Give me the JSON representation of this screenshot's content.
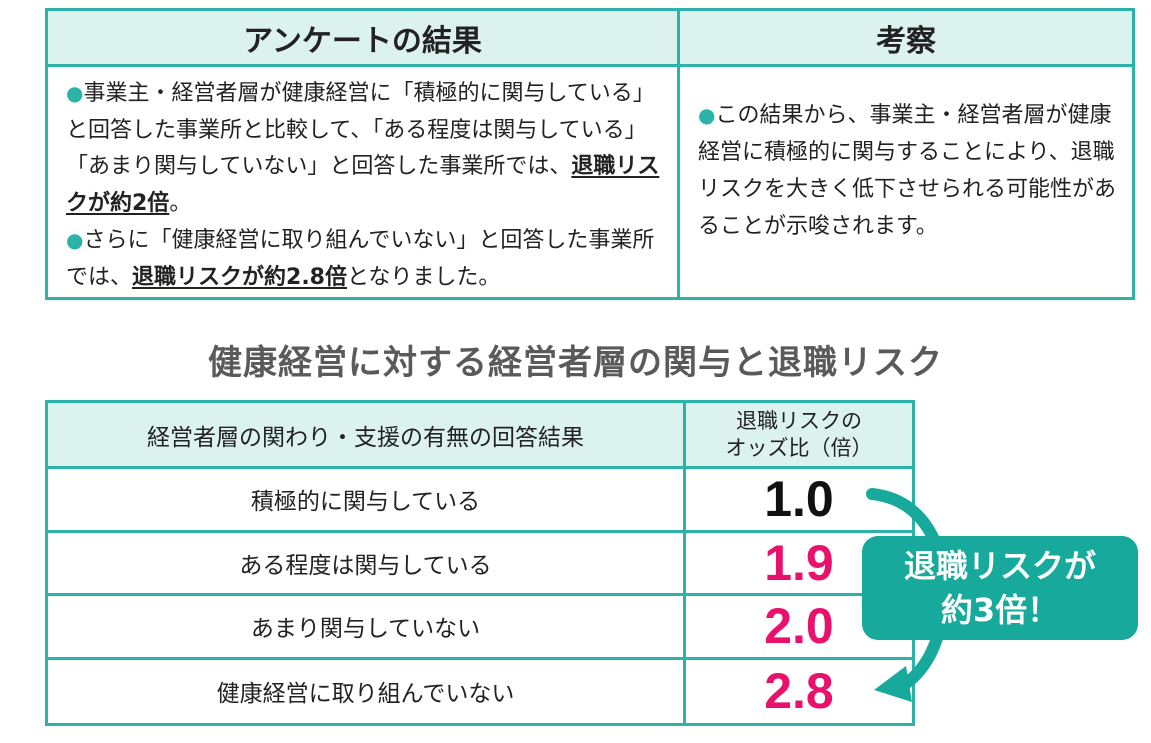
{
  "survey": {
    "header_left": "アンケートの結果",
    "header_right": "考察",
    "left_p1_lead": "事業主・経営者層が健康経営に「積極的に関与している」 と回答した事業所と比較して、「ある程度は関与している」「あまり関与していない」と回答した事業所では、",
    "left_p1_emph": "退職リスクが約2倍",
    "left_p1_tail": "。",
    "left_p2_lead": "さらに「健康経営に取り組んでいない」と回答した事業所では、",
    "left_p2_emph": "退職リスクが約2.8倍",
    "left_p2_tail": "となりました。",
    "right_text": "この結果から、事業主・経営者層が健康経営に積極的に関与することにより、退職リスクを大きく低下させられる可能性があることが示唆されます。",
    "bullet_color": "#2bb3a7"
  },
  "table_title": "健康経営に対する経営者層の関与と退職リスク",
  "risk_table": {
    "header_left": "経営者層の関わり・支援の有無の回答結果",
    "header_right_line1": "退職リスクの",
    "header_right_line2": "オッズ比（倍）",
    "rows": [
      {
        "label": "積極的に関与している",
        "value": "1.0",
        "color": "#111111"
      },
      {
        "label": "ある程度は関与している",
        "value": "1.9",
        "color": "#e8116b"
      },
      {
        "label": "あまり関与していない",
        "value": "2.0",
        "color": "#e8116b"
      },
      {
        "label": "健康経営に取り組んでいない",
        "value": "2.8",
        "color": "#e8116b"
      }
    ]
  },
  "callout": {
    "line1": "退職リスクが",
    "line2": "約3倍！",
    "color": "#17a99b"
  },
  "colors": {
    "accent": "#2bb3a7",
    "header_bg": "#dcf2ef",
    "highlight": "#e8116b"
  }
}
